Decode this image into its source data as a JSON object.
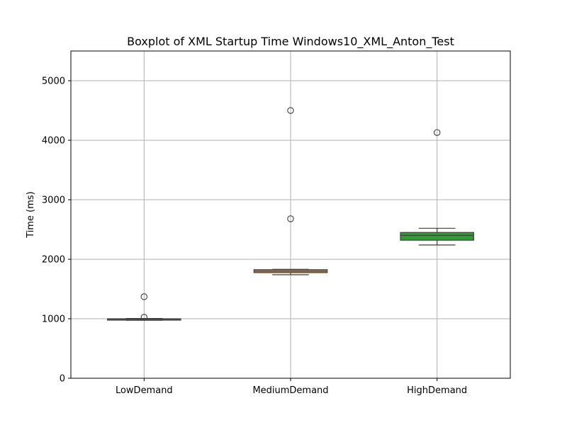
{
  "chart_data": {
    "type": "box",
    "title": "Boxplot of XML Startup Time Windows10_XML_Anton_Test",
    "xlabel": "",
    "ylabel": "Time (ms)",
    "ylim": [
      0,
      5500
    ],
    "yticks": [
      0,
      1000,
      2000,
      3000,
      4000,
      5000
    ],
    "grid": true,
    "categories": [
      "LowDemand",
      "MediumDemand",
      "HighDemand"
    ],
    "boxes": [
      {
        "category": "LowDemand",
        "color": "#1f77b4",
        "whisker_low": 975,
        "q1": 985,
        "median": 995,
        "q3": 1000,
        "whisker_high": 1005,
        "outliers": [
          1025,
          1370
        ]
      },
      {
        "category": "MediumDemand",
        "color": "#ff7f0e",
        "whisker_low": 1740,
        "q1": 1775,
        "median": 1800,
        "q3": 1825,
        "whisker_high": 1830,
        "outliers": [
          2680,
          4500
        ]
      },
      {
        "category": "HighDemand",
        "color": "#2ca02c",
        "whisker_low": 2240,
        "q1": 2320,
        "median": 2400,
        "q3": 2450,
        "whisker_high": 2520,
        "outliers": [
          4130
        ]
      }
    ]
  }
}
